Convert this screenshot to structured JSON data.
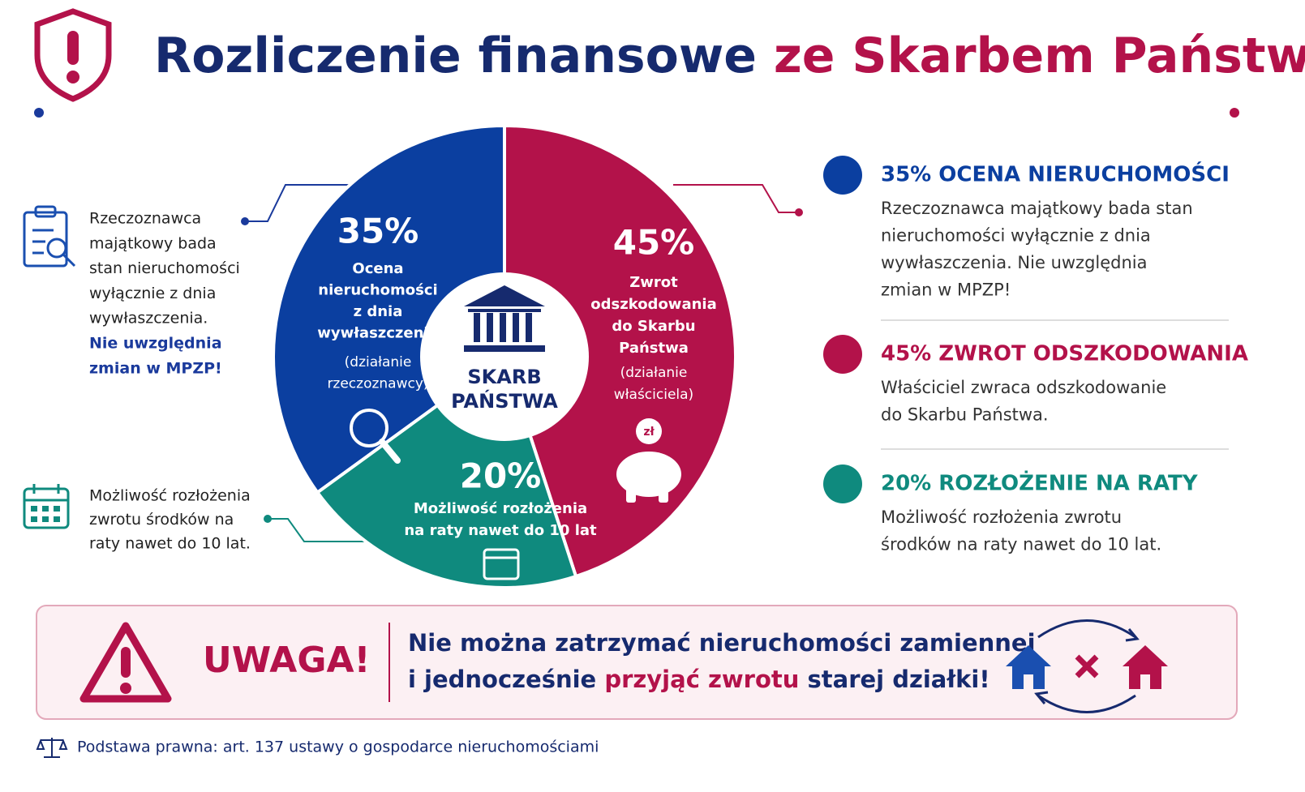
{
  "header": {
    "title_part1": "Rozliczenie finansowe",
    "title_part2": "ze Skarbem Państwa"
  },
  "chart_data": {
    "type": "pie",
    "categories": [
      "35% OCENA NIERUCHOMOŚCI",
      "45% ZWROT ODSZKODOWANIA",
      "20% ROZŁOŻENIE NA RATY"
    ],
    "values": [
      35,
      45,
      20
    ],
    "value_labels": [
      "35%",
      "45%",
      "20%"
    ],
    "colors": [
      "#0b3fa0",
      "#b3124a",
      "#0f8a7e"
    ],
    "center_label": [
      "SKARB",
      "PAŃSTWA"
    ]
  },
  "slice_texts": [
    {
      "lines": [
        "Ocena",
        "nieruchomości",
        "z dnia",
        "wywłaszczenia"
      ],
      "note": [
        "(działanie",
        "rzeczoznawcy)"
      ]
    },
    {
      "lines": [
        "Zwrot",
        "odszkodowania",
        "do Skarbu",
        "Państwa"
      ],
      "note": [
        "(działanie",
        "właściciela)"
      ]
    },
    {
      "lines": [
        "Możliwość rozłożenia",
        "na raty nawet do 10 lat"
      ],
      "note": []
    }
  ],
  "piggy_label": "zł",
  "legend_descriptions": [
    [
      "Rzeczoznawca majątkowy bada stan",
      "nieruchomości wyłącznie z dnia",
      "wywłaszczenia. Nie uwzględnia",
      "zmian w MPZP!"
    ],
    [
      "Właściciel zwraca odszkodowanie",
      "do Skarbu Państwa."
    ],
    [
      "Możliwość rozłożenia zwrotu",
      "środków na raty nawet do 10 lat."
    ]
  ],
  "left_notes": [
    {
      "lines": [
        "Rzeczoznawca",
        "majątkowy bada",
        "stan nieruchomości",
        "wyłącznie z dnia",
        "wywłaszczenia."
      ],
      "emphasis": [
        "Nie uwzględnia",
        "zmian w MPZP!"
      ]
    },
    {
      "lines": [
        "Możliwość rozłożenia",
        "zwrotu środków na",
        "raty nawet do 10 lat."
      ],
      "emphasis": []
    }
  ],
  "warning": {
    "label": "UWAGA!",
    "line1": "Nie można zatrzymać nieruchomości zamiennej",
    "line2_a": "i jednocześnie",
    "line2_b": "przyjąć zwrotu",
    "line2_c": "starej działki!"
  },
  "footer": "Podstawa prawna: art. 137 ustawy o gospodarce nieruchomościami"
}
